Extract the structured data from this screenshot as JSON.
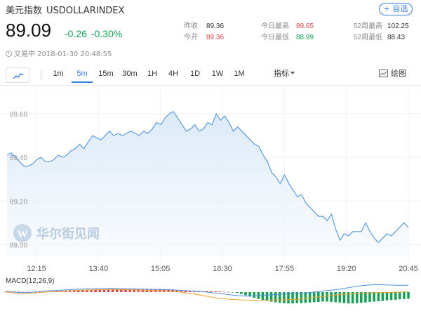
{
  "header": {
    "name": "美元指数",
    "symbol": "USDOLLARINDEX",
    "add_label": "+ 自选",
    "price": "89.09",
    "change": "-0.26",
    "change_pct": "-0.30%",
    "status_text": "交易中 2018-01-30 20:48:55"
  },
  "stats": {
    "prev_close_label": "昨收",
    "prev_close": "89.36",
    "open_label": "今开",
    "open": "89.36",
    "high_label": "今日最高",
    "high": "89.65",
    "low_label": "今日最低",
    "low": "88.99",
    "w52_high_label": "52周最高",
    "w52_high": "102.25",
    "w52_low_label": "52周最低",
    "w52_low": "88.43"
  },
  "toolbar": {
    "periods": [
      "1m",
      "5m",
      "15m",
      "30m",
      "1H",
      "4H",
      "1D",
      "1W",
      "1M"
    ],
    "active_period": "5m",
    "indicator_label": "指标",
    "draw_label": "绘图"
  },
  "colors": {
    "accent": "#3b7fe0",
    "up": "#e04a4a",
    "down": "#19a056",
    "line": "#5b9be0"
  },
  "watermark": {
    "text": "华尔街见闻",
    "logo": "W"
  },
  "chart_data": {
    "type": "area",
    "title": "",
    "y_ticks": [
      "89.60",
      "89.40",
      "89.20",
      "89.00"
    ],
    "ylim": [
      88.95,
      89.69
    ],
    "x_ticks": [
      "12:15",
      "13:40",
      "15:05",
      "16:30",
      "17:55",
      "19:20",
      "20:45"
    ],
    "values": [
      89.41,
      89.42,
      89.4,
      89.38,
      89.36,
      89.36,
      89.37,
      89.39,
      89.4,
      89.38,
      89.38,
      89.39,
      89.41,
      89.4,
      89.41,
      89.43,
      89.44,
      89.46,
      89.44,
      89.47,
      89.5,
      89.49,
      89.48,
      89.5,
      89.52,
      89.5,
      89.51,
      89.5,
      89.51,
      89.52,
      89.51,
      89.5,
      89.52,
      89.51,
      89.53,
      89.56,
      89.55,
      89.58,
      89.6,
      89.61,
      89.58,
      89.55,
      89.52,
      89.53,
      89.55,
      89.52,
      89.53,
      89.56,
      89.55,
      89.6,
      89.57,
      89.59,
      89.56,
      89.52,
      89.54,
      89.52,
      89.5,
      89.48,
      89.46,
      89.45,
      89.41,
      89.38,
      89.33,
      89.31,
      89.28,
      89.32,
      89.28,
      89.25,
      89.22,
      89.23,
      89.19,
      89.17,
      89.15,
      89.13,
      89.13,
      89.11,
      89.14,
      89.07,
      89.02,
      89.05,
      89.04,
      89.06,
      89.06,
      89.06,
      89.1,
      89.06,
      89.03,
      89.01,
      89.03,
      89.05,
      89.04,
      89.06,
      89.08,
      89.1,
      89.08
    ],
    "macd": {
      "label": "MACD(12,26,9)",
      "hist": [
        0.15,
        0.2,
        0.2,
        0.15,
        0.1,
        0.1,
        0.05,
        0.0,
        0.05,
        0.1,
        0.15,
        0.2,
        0.2,
        0.25,
        0.3,
        0.35,
        0.4,
        0.5,
        0.55,
        0.6,
        0.65,
        0.7,
        0.75,
        0.8,
        0.8,
        0.85,
        0.9,
        0.95,
        1.0,
        1.0,
        0.95,
        0.9,
        0.85,
        0.85,
        0.9,
        0.95,
        1.0,
        0.95,
        0.9,
        0.85,
        0.7,
        0.6,
        0.45,
        0.35,
        0.25,
        0.2,
        0.3,
        0.35,
        0.3,
        0.25,
        0.2,
        0.1,
        0.05,
        -0.1,
        -0.3,
        -0.6,
        -1.0,
        -1.4,
        -1.8,
        -2.2,
        -2.5,
        -2.8,
        -3.0,
        -3.2,
        -3.4,
        -3.5,
        -3.6,
        -3.6,
        -3.5,
        -3.5,
        -3.4,
        -3.3,
        -3.2,
        -3.1,
        -3.0,
        -3.0,
        -3.1,
        -3.2,
        -3.3,
        -3.5,
        -3.6,
        -3.6,
        -3.5,
        -3.4,
        -3.3,
        -3.1,
        -3.0,
        -2.9,
        -2.8,
        -2.6,
        -2.5,
        -2.4,
        -2.3,
        -2.2,
        -2.1
      ],
      "dif": [
        0.2,
        0.1,
        0.0,
        -0.1,
        -0.2,
        -0.2,
        -0.1,
        0.1,
        0.3,
        0.4,
        0.5,
        0.6,
        0.7,
        0.8,
        0.9,
        1.0,
        1.1,
        1.2,
        1.2,
        1.3,
        1.3,
        1.4,
        1.4,
        1.5,
        1.5,
        1.5,
        1.4,
        1.4,
        1.3,
        1.3,
        1.3,
        1.2,
        1.2,
        1.2,
        1.1,
        1.1,
        1.0,
        1.0,
        0.9,
        0.9,
        0.8,
        0.7,
        0.6,
        0.5,
        0.4,
        0.3,
        0.2,
        0.0,
        -0.2,
        -0.4,
        -0.6,
        -0.8,
        -1.0,
        -1.2,
        -1.4,
        -1.5,
        -1.6,
        -1.6,
        -1.5,
        -1.4,
        -1.3,
        -1.2,
        -1.1,
        -1.0,
        -0.9,
        -0.8,
        -0.7,
        -0.6,
        -0.5,
        -0.4,
        -0.3,
        -0.2,
        0.0,
        0.2,
        0.4,
        0.6,
        0.8,
        1.0,
        1.2,
        1.5,
        1.8,
        2.1,
        2.4,
        2.6,
        2.8,
        2.9,
        3.0,
        3.0,
        3.0,
        2.9,
        2.9,
        2.8,
        2.8,
        2.8,
        2.8
      ],
      "dea": [
        0.0,
        -0.2,
        -0.4,
        -0.5,
        -0.6,
        -0.6,
        -0.5,
        -0.4,
        -0.2,
        0.0,
        0.1,
        0.2,
        0.3,
        0.4,
        0.5,
        0.6,
        0.7,
        0.8,
        0.8,
        0.9,
        0.9,
        1.0,
        1.0,
        1.0,
        1.1,
        1.1,
        1.1,
        1.0,
        1.0,
        0.9,
        0.9,
        0.8,
        0.8,
        0.7,
        0.7,
        0.6,
        0.6,
        0.5,
        0.4,
        0.3,
        0.2,
        0.0,
        -0.2,
        -0.5,
        -0.8,
        -1.1,
        -1.4,
        -1.7,
        -2.0,
        -2.3,
        -2.5,
        -2.7,
        -2.9,
        -3.0,
        -3.1,
        -3.2,
        -3.2,
        -3.3,
        -3.3,
        -3.3,
        -3.3,
        -3.3,
        -3.2,
        -3.2,
        -3.2,
        -3.1,
        -3.1,
        -3.0,
        -2.9,
        -2.8,
        -2.6,
        -2.4,
        -2.2,
        -2.0,
        -1.8,
        -1.6,
        -1.4,
        -1.2,
        -1.0,
        -0.9,
        -0.8,
        -0.7,
        -0.6,
        -0.5,
        -0.4,
        -0.3,
        -0.3,
        -0.2,
        -0.2,
        -0.1,
        -0.1,
        0.0,
        0.0,
        0.1,
        0.1
      ]
    }
  }
}
